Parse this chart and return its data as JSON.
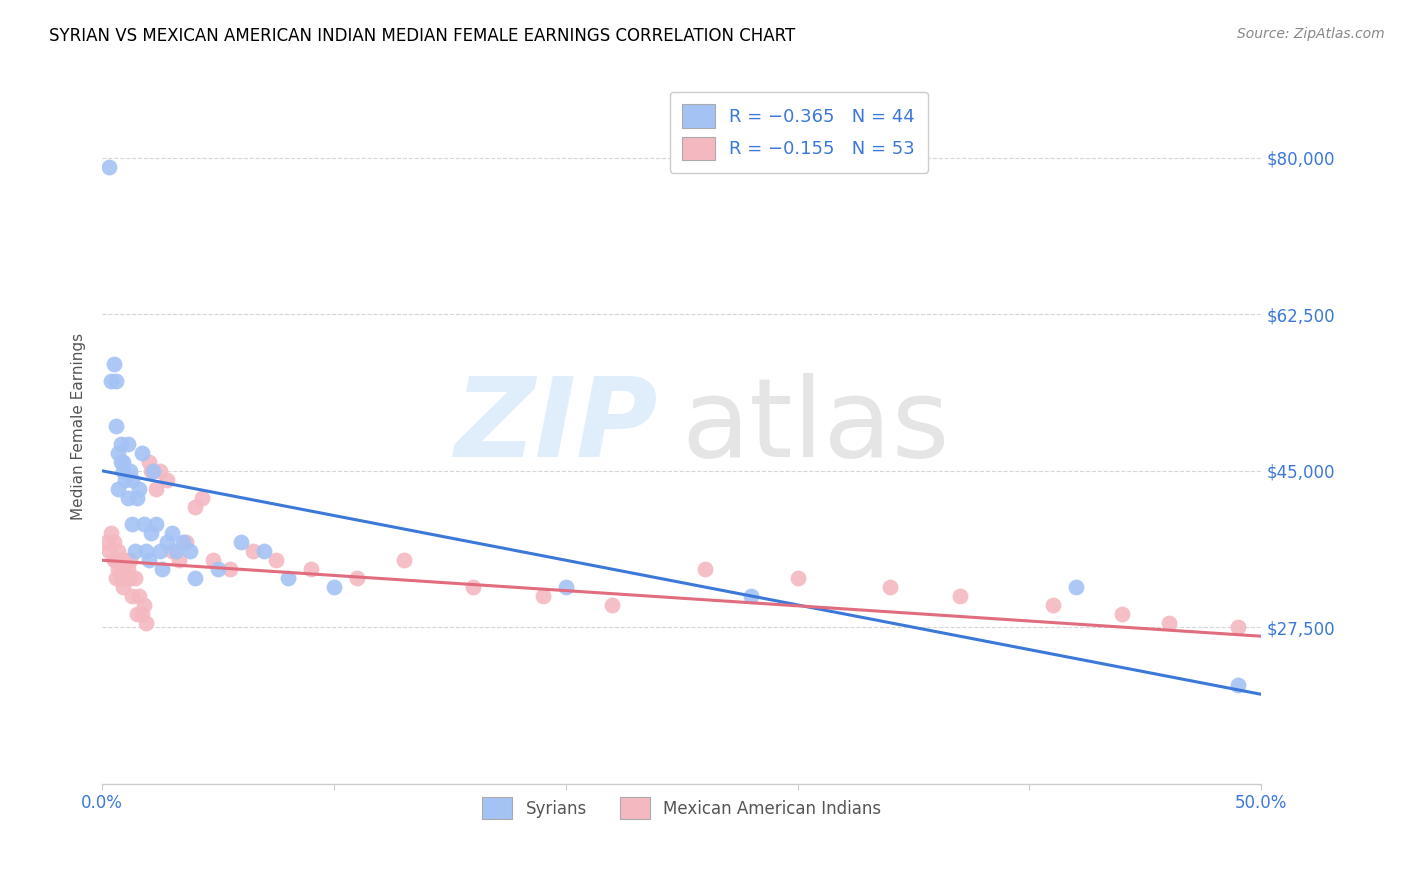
{
  "title": "SYRIAN VS MEXICAN AMERICAN INDIAN MEDIAN FEMALE EARNINGS CORRELATION CHART",
  "source": "Source: ZipAtlas.com",
  "ylabel": "Median Female Earnings",
  "xlim": [
    0.0,
    0.5
  ],
  "ylim": [
    10000,
    90000
  ],
  "ytick_labels": [
    "$27,500",
    "$45,000",
    "$62,500",
    "$80,000"
  ],
  "ytick_values": [
    27500,
    45000,
    62500,
    80000
  ],
  "legend_label1": "Syrians",
  "legend_label2": "Mexican American Indians",
  "blue_color": "#a4c2f4",
  "pink_color": "#f4b8c1",
  "blue_line_color": "#3c78d8",
  "pink_line_color": "#e06c7e",
  "background_color": "#ffffff",
  "grid_color": "#cccccc",
  "title_color": "#000000",
  "right_label_color": "#3c78d8",
  "syrians_x": [
    0.003,
    0.004,
    0.005,
    0.006,
    0.006,
    0.007,
    0.007,
    0.008,
    0.008,
    0.009,
    0.009,
    0.01,
    0.011,
    0.011,
    0.012,
    0.013,
    0.013,
    0.014,
    0.015,
    0.016,
    0.017,
    0.018,
    0.019,
    0.02,
    0.021,
    0.022,
    0.023,
    0.025,
    0.026,
    0.028,
    0.03,
    0.032,
    0.035,
    0.038,
    0.04,
    0.05,
    0.06,
    0.07,
    0.08,
    0.1,
    0.2,
    0.28,
    0.42,
    0.49
  ],
  "syrians_y": [
    79000,
    55000,
    57000,
    50000,
    55000,
    43000,
    47000,
    46000,
    48000,
    45000,
    46000,
    44000,
    48000,
    42000,
    45000,
    44000,
    39000,
    36000,
    42000,
    43000,
    47000,
    39000,
    36000,
    35000,
    38000,
    45000,
    39000,
    36000,
    34000,
    37000,
    38000,
    36000,
    37000,
    36000,
    33000,
    34000,
    37000,
    36000,
    33000,
    32000,
    32000,
    31000,
    32000,
    21000
  ],
  "mexican_x": [
    0.002,
    0.003,
    0.004,
    0.005,
    0.005,
    0.006,
    0.006,
    0.007,
    0.007,
    0.008,
    0.008,
    0.009,
    0.009,
    0.01,
    0.01,
    0.011,
    0.012,
    0.012,
    0.013,
    0.014,
    0.015,
    0.016,
    0.017,
    0.018,
    0.019,
    0.02,
    0.021,
    0.023,
    0.025,
    0.028,
    0.03,
    0.033,
    0.036,
    0.04,
    0.043,
    0.048,
    0.055,
    0.065,
    0.075,
    0.09,
    0.11,
    0.13,
    0.16,
    0.19,
    0.22,
    0.26,
    0.3,
    0.34,
    0.37,
    0.41,
    0.44,
    0.46,
    0.49
  ],
  "mexican_y": [
    37000,
    36000,
    38000,
    35000,
    37000,
    33000,
    35000,
    34000,
    36000,
    33000,
    35000,
    32000,
    34000,
    33000,
    35000,
    34000,
    33000,
    35000,
    31000,
    33000,
    29000,
    31000,
    29000,
    30000,
    28000,
    46000,
    45000,
    43000,
    45000,
    44000,
    36000,
    35000,
    37000,
    41000,
    42000,
    35000,
    34000,
    36000,
    35000,
    34000,
    33000,
    35000,
    32000,
    31000,
    30000,
    34000,
    33000,
    32000,
    31000,
    30000,
    29000,
    28000,
    27500
  ],
  "blue_intercept": 45000,
  "blue_slope": -50000,
  "pink_intercept": 35000,
  "pink_slope": -17000
}
